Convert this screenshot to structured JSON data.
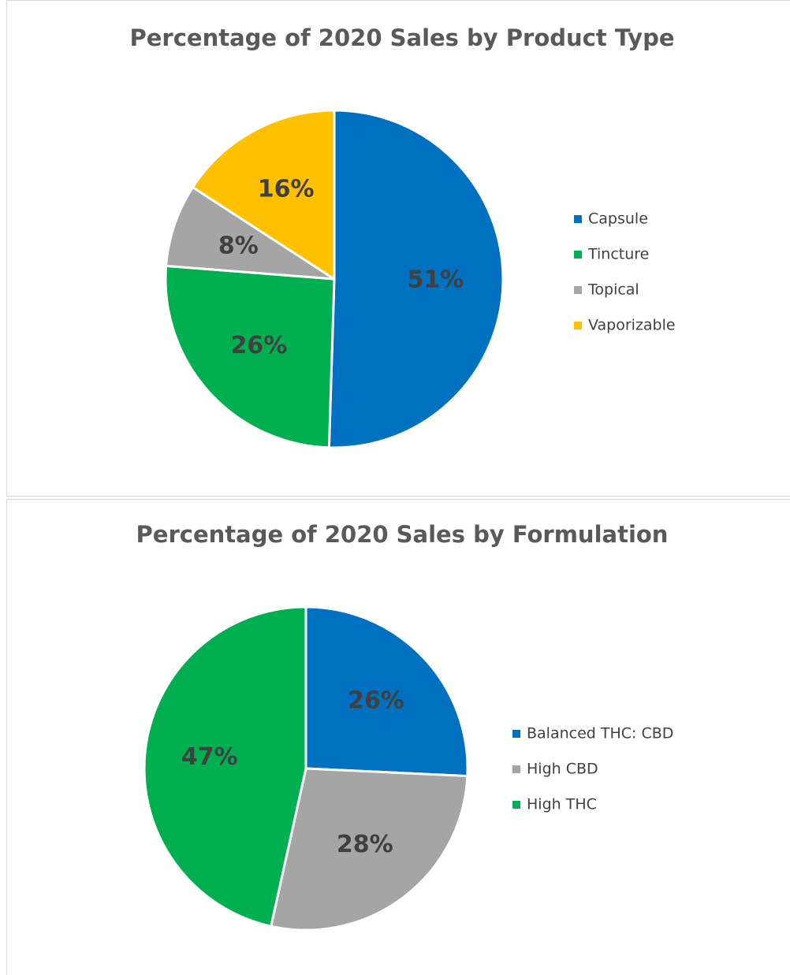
{
  "chart_data": [
    {
      "type": "pie",
      "title": "Percentage of 2020 Sales by Product Type",
      "categories": [
        "Capsule",
        "Tincture",
        "Topical",
        "Vaporizable"
      ],
      "values": [
        51,
        26,
        8,
        16
      ],
      "value_labels": [
        "51%",
        "26%",
        "8%",
        "16%"
      ],
      "colors": [
        "#0070c0",
        "#00b050",
        "#a5a5a5",
        "#ffc000"
      ],
      "legend": "right"
    },
    {
      "type": "pie",
      "title": "Percentage of 2020 Sales by Formulation",
      "categories": [
        "Balanced THC: CBD",
        "High CBD",
        "High THC"
      ],
      "values": [
        26,
        28,
        47
      ],
      "value_labels": [
        "26%",
        "28%",
        "47%"
      ],
      "colors": [
        "#0070c0",
        "#a5a5a5",
        "#00b050"
      ],
      "legend": "right"
    }
  ]
}
